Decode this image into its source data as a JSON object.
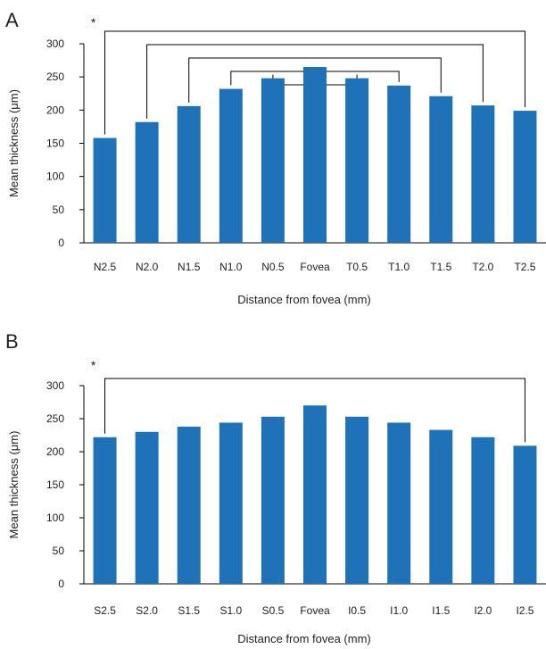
{
  "colors": {
    "bar": "#1f72b8",
    "axis": "#000000",
    "bracket": "#000000",
    "text": "#222222"
  },
  "chart_data": [
    {
      "panel": "A",
      "type": "bar",
      "categories": [
        "N2.5",
        "N2.0",
        "N1.5",
        "N1.0",
        "N0.5",
        "Fovea",
        "T0.5",
        "T1.0",
        "T1.5",
        "T2.0",
        "T2.5"
      ],
      "values": [
        158,
        182,
        206,
        232,
        248,
        265,
        248,
        237,
        221,
        207,
        199
      ],
      "xlabel": "Distance from fovea (mm)",
      "ylabel": "Mean thickness (μm)",
      "ylim": [
        0,
        300
      ],
      "yticks": [
        0,
        50,
        100,
        150,
        200,
        250,
        300
      ],
      "grid": false,
      "significance": {
        "marker": "*",
        "pairs": [
          [
            0,
            10
          ],
          [
            1,
            9
          ],
          [
            2,
            8
          ],
          [
            3,
            7
          ],
          [
            4,
            6
          ]
        ]
      }
    },
    {
      "panel": "B",
      "type": "bar",
      "categories": [
        "S2.5",
        "S2.0",
        "S1.5",
        "S1.0",
        "S0.5",
        "Fovea",
        "I0.5",
        "I1.0",
        "I1.5",
        "I2.0",
        "I2.5"
      ],
      "values": [
        222,
        230,
        238,
        244,
        253,
        270,
        253,
        244,
        233,
        222,
        209
      ],
      "xlabel": "Distance from fovea (mm)",
      "ylabel": "Mean thickness (μm)",
      "ylim": [
        0,
        300
      ],
      "yticks": [
        0,
        50,
        100,
        150,
        200,
        250,
        300
      ],
      "grid": false,
      "significance": {
        "marker": "*",
        "pairs": [
          [
            0,
            10
          ]
        ]
      }
    }
  ]
}
